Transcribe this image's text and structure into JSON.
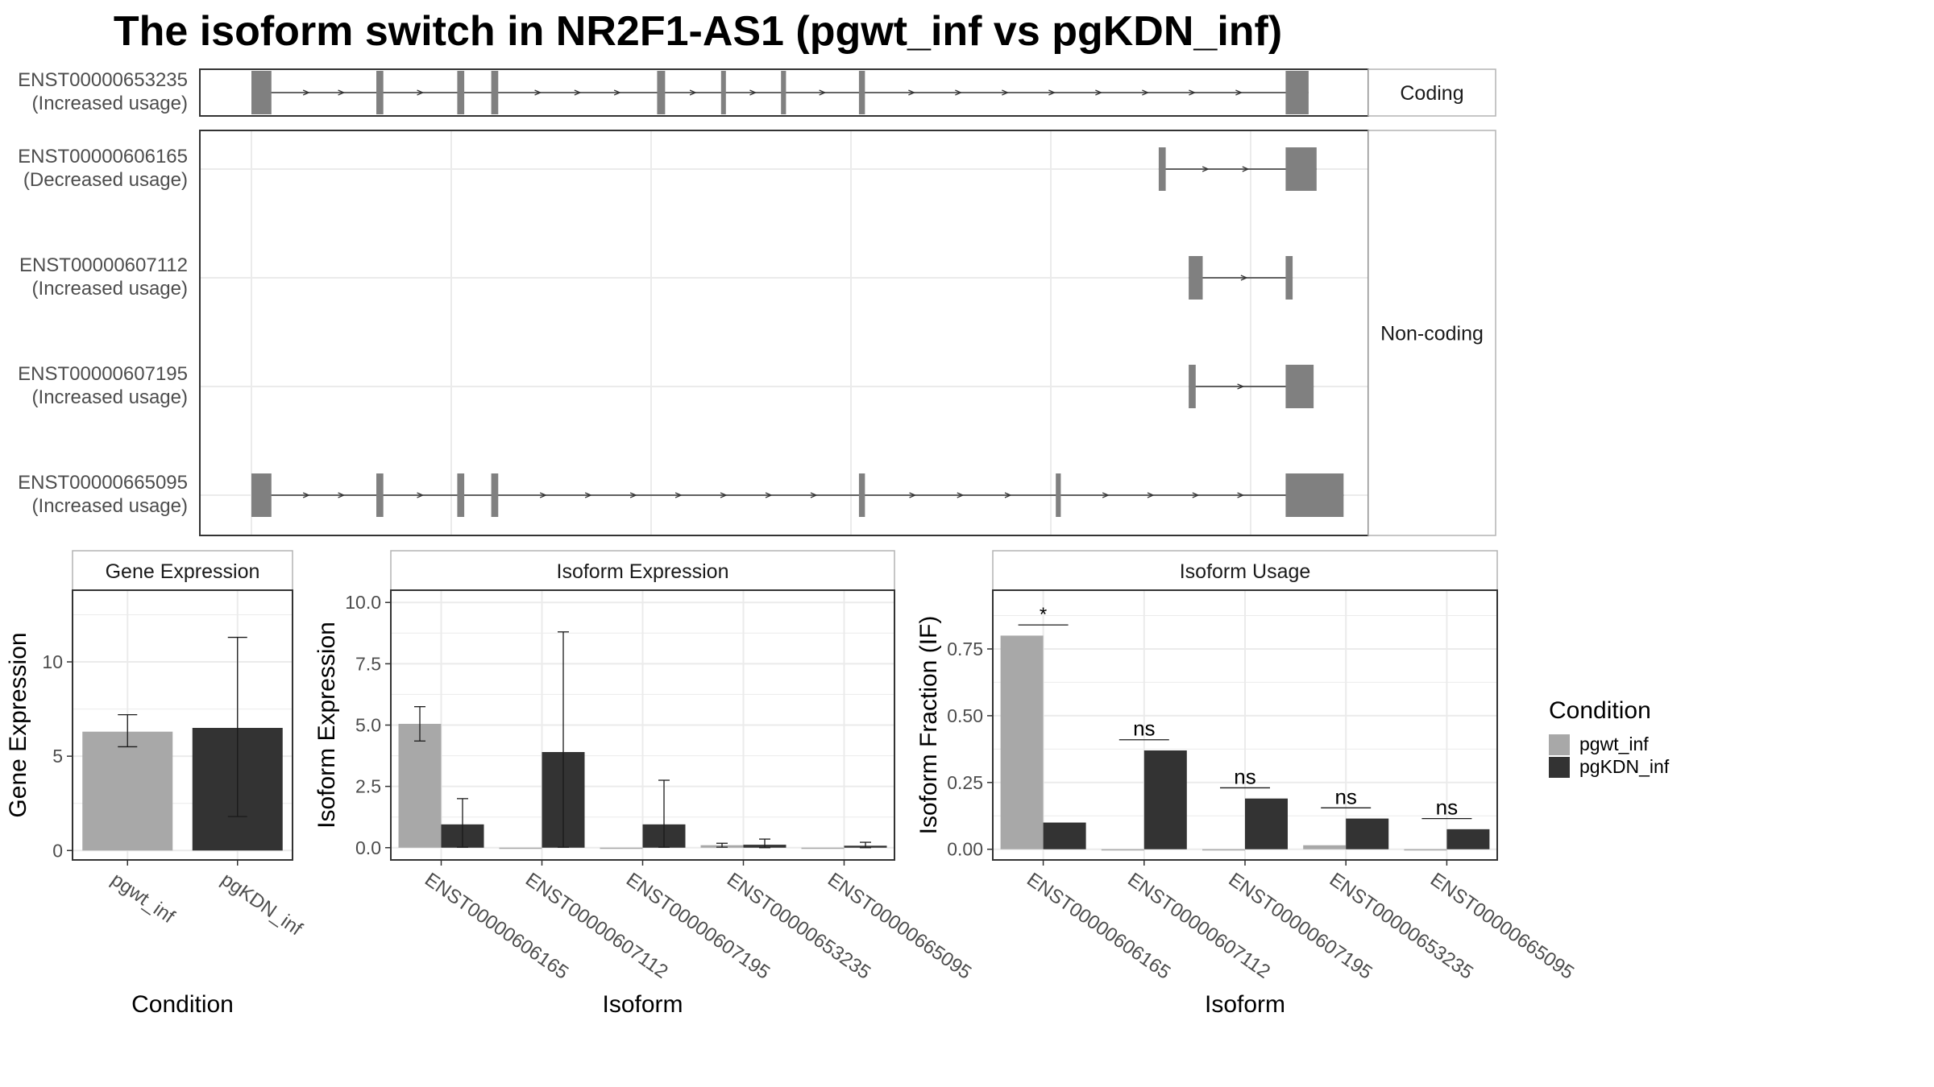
{
  "title": "The isoform switch in NR2F1-AS1 (pgwt_inf vs pgKDN_inf)",
  "colors": {
    "pgwt_inf": "#a8a8a8",
    "pgKDN_inf": "#333333",
    "exon": "#808080",
    "intron": "#333333",
    "grid": "#ebebeb",
    "panel_border": "#333333",
    "strip_border": "#b3b3b3"
  },
  "structure": {
    "coord_range": [
      0,
      1000
    ],
    "grid_breaks": [
      0,
      200,
      400,
      600,
      800,
      1000
    ],
    "groups": [
      {
        "label": "Coding",
        "isoforms": [
          {
            "id": "ENST00000653235",
            "usage": "(Increased usage)",
            "exons": [
              [
                0,
                20
              ],
              [
                125,
                132
              ],
              [
                206,
                213
              ],
              [
                240,
                247
              ],
              [
                406,
                414
              ],
              [
                470,
                474
              ],
              [
                530,
                535
              ],
              [
                608,
                614
              ],
              [
                1035,
                1058
              ]
            ]
          }
        ]
      },
      {
        "label": "Non-coding",
        "isoforms": [
          {
            "id": "ENST00000606165",
            "usage": "(Decreased usage)",
            "exons": [
              [
                908,
                915
              ],
              [
                1035,
                1066
              ]
            ]
          },
          {
            "id": "ENST00000607112",
            "usage": "(Increased usage)",
            "exons": [
              [
                938,
                952
              ],
              [
                1035,
                1042
              ]
            ]
          },
          {
            "id": "ENST00000607195",
            "usage": "(Increased usage)",
            "exons": [
              [
                938,
                945
              ],
              [
                1035,
                1063
              ]
            ]
          },
          {
            "id": "ENST00000665095",
            "usage": "(Increased usage)",
            "exons": [
              [
                0,
                20
              ],
              [
                125,
                132
              ],
              [
                206,
                213
              ],
              [
                240,
                247
              ],
              [
                608,
                614
              ],
              [
                805,
                810
              ],
              [
                1035,
                1093
              ]
            ]
          }
        ]
      }
    ]
  },
  "legend": {
    "title": "Condition",
    "entries": [
      "pgwt_inf",
      "pgKDN_inf"
    ]
  },
  "chart_data": [
    {
      "type": "bar",
      "title": "Gene Expression",
      "xlabel": "Condition",
      "ylabel": "Gene Expression",
      "categories": [
        "pgwt_inf",
        "pgKDN_inf"
      ],
      "values": [
        6.3,
        6.5
      ],
      "error_low": [
        5.5,
        1.8
      ],
      "error_high": [
        7.2,
        11.3
      ],
      "ylim": [
        -0.5,
        13.8
      ],
      "yticks": [
        0,
        5,
        10
      ]
    },
    {
      "type": "bar",
      "title": "Isoform Expression",
      "xlabel": "Isoform",
      "ylabel": "Isoform Expression",
      "categories": [
        "ENST00000606165",
        "ENST00000607112",
        "ENST00000607195",
        "ENST00000653235",
        "ENST00000665095"
      ],
      "series": [
        {
          "name": "pgwt_inf",
          "values": [
            5.05,
            0,
            0,
            0.1,
            0
          ],
          "error_low": [
            4.35,
            null,
            null,
            0.02,
            null
          ],
          "error_high": [
            5.75,
            null,
            null,
            0.18,
            null
          ]
        },
        {
          "name": "pgKDN_inf",
          "values": [
            0.95,
            3.9,
            0.95,
            0.12,
            0.08
          ],
          "error_low": [
            0.02,
            0.02,
            0.02,
            0.0,
            0.0
          ],
          "error_high": [
            2.0,
            8.8,
            2.75,
            0.35,
            0.22
          ]
        }
      ],
      "ylim": [
        -0.5,
        10.5
      ],
      "yticks": [
        0.0,
        2.5,
        5.0,
        7.5,
        10.0
      ]
    },
    {
      "type": "bar",
      "title": "Isoform Usage",
      "xlabel": "Isoform",
      "ylabel": "Isoform Fraction (IF)",
      "categories": [
        "ENST00000606165",
        "ENST00000607112",
        "ENST00000607195",
        "ENST00000653235",
        "ENST00000665095"
      ],
      "series": [
        {
          "name": "pgwt_inf",
          "values": [
            0.8,
            0,
            0,
            0.015,
            0
          ]
        },
        {
          "name": "pgKDN_inf",
          "values": [
            0.1,
            0.37,
            0.19,
            0.115,
            0.075
          ]
        }
      ],
      "significance": [
        {
          "label": "*",
          "level": 0.84
        },
        {
          "label": "ns",
          "level": 0.41
        },
        {
          "label": "ns",
          "level": 0.23
        },
        {
          "label": "ns",
          "level": 0.155
        },
        {
          "label": "ns",
          "level": 0.115
        }
      ],
      "ylim": [
        -0.04,
        0.97
      ],
      "yticks": [
        0.0,
        0.25,
        0.5,
        0.75
      ]
    }
  ]
}
